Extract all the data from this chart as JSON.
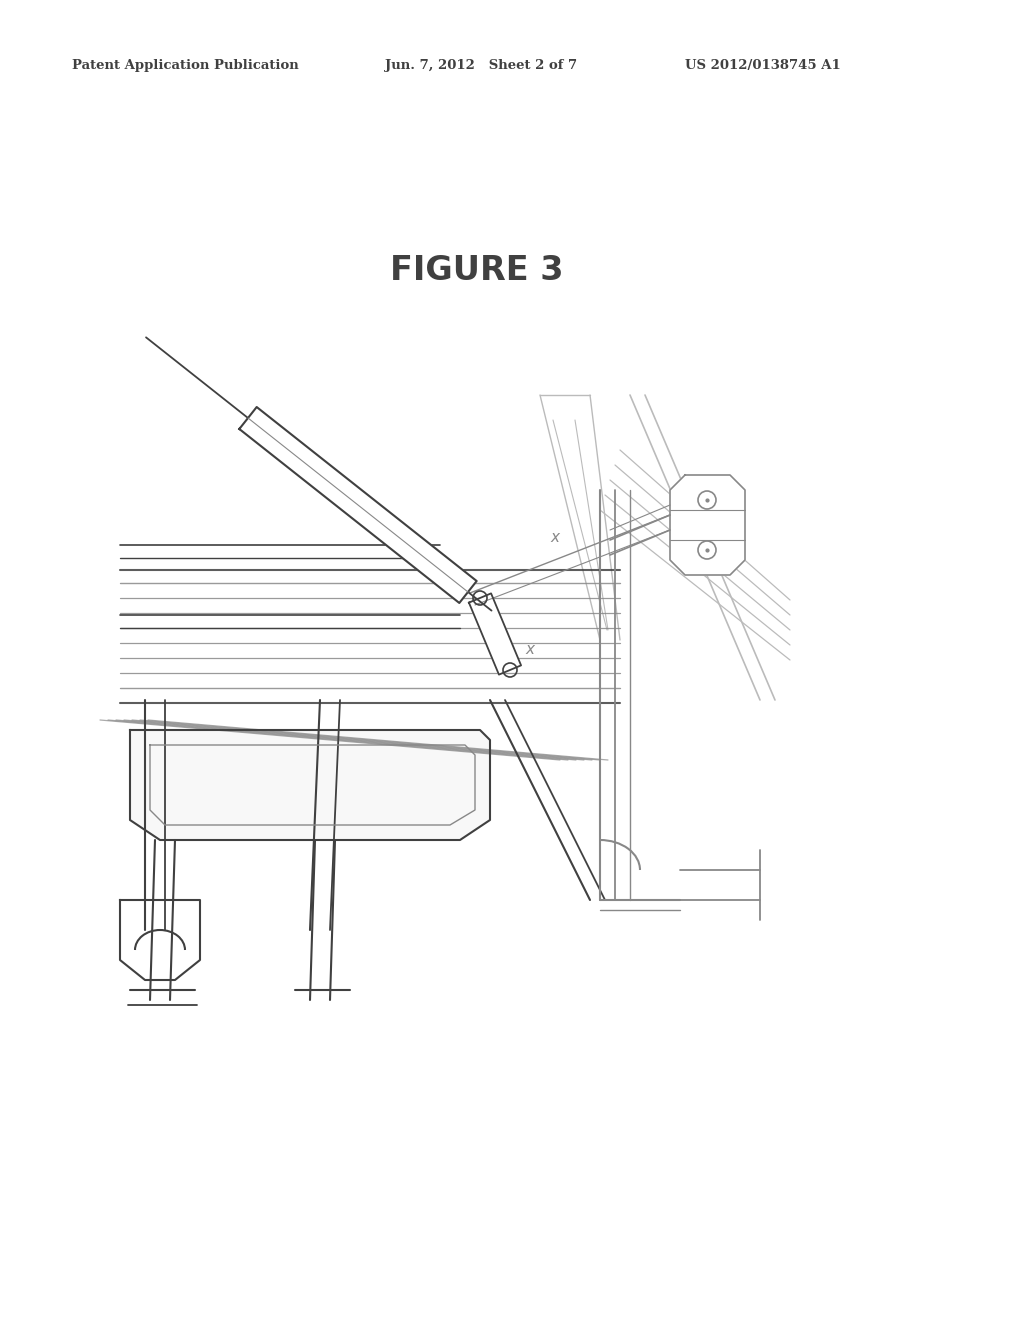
{
  "background_color": "#ffffff",
  "header_text_left": "Patent Application Publication",
  "header_text_mid": "Jun. 7, 2012   Sheet 2 of 7",
  "header_text_right": "US 2012/0138745 A1",
  "figure_label": "FIGURE 3",
  "header_fontsize": 9.5,
  "figure_fontsize": 24,
  "lc": "#404040",
  "lm": "#888888",
  "ll": "#bbbbbb"
}
